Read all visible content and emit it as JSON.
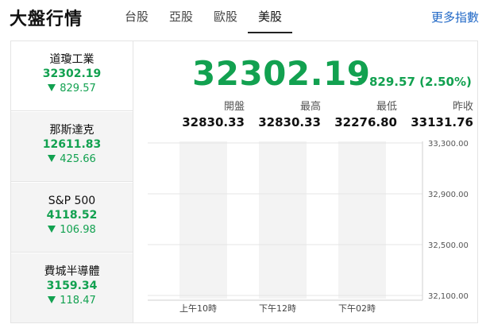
{
  "header": {
    "title": "大盤行情",
    "tabs": [
      {
        "label": "台股",
        "active": false
      },
      {
        "label": "亞股",
        "active": false
      },
      {
        "label": "歐股",
        "active": false
      },
      {
        "label": "美股",
        "active": true
      }
    ],
    "more_label": "更多指數"
  },
  "indices": [
    {
      "name": "道瓊工業",
      "value": "32302.19",
      "change": "829.57",
      "active": true
    },
    {
      "name": "那斯達克",
      "value": "12611.83",
      "change": "425.66",
      "active": false
    },
    {
      "name": "S&P 500",
      "value": "4118.52",
      "change": "106.98",
      "active": false
    },
    {
      "name": "費城半導體",
      "value": "3159.34",
      "change": "118.47",
      "active": false
    }
  ],
  "main": {
    "value": "32302.19",
    "change": "829.57 (2.50%)",
    "stats": [
      {
        "label": "開盤",
        "value": "32830.33"
      },
      {
        "label": "最高",
        "value": "32830.33"
      },
      {
        "label": "最低",
        "value": "32276.80"
      },
      {
        "label": "昨收",
        "value": "33131.76"
      }
    ]
  },
  "colors": {
    "down": "#12a150",
    "link": "#1f67c6"
  },
  "chart_data": {
    "type": "line",
    "x_tick_labels": [
      "上午10時",
      "下午12時",
      "下午02時"
    ],
    "y_tick_labels": [
      "33,300.00",
      "32,900.00",
      "32,500.00",
      "32,100.00"
    ],
    "y_ticks": [
      33300,
      32900,
      32500,
      32100
    ],
    "ylim": [
      32100,
      33300
    ],
    "series": []
  }
}
